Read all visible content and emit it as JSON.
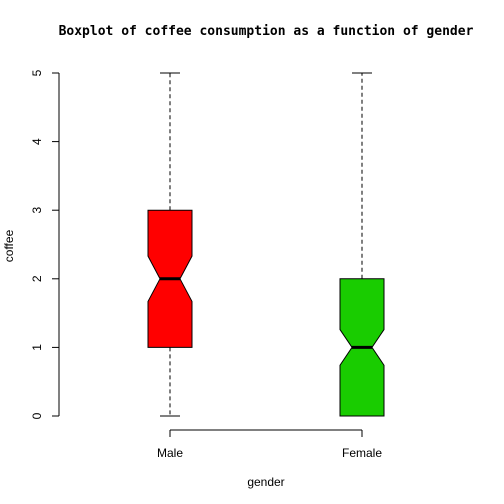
{
  "chart_data": {
    "type": "boxplot",
    "title": "Boxplot of coffee consumption as a function of gender",
    "xlabel": "gender",
    "ylabel": "coffee",
    "ylim": [
      0,
      5
    ],
    "yticks": [
      "0",
      "1",
      "2",
      "3",
      "4",
      "5"
    ],
    "notched": true,
    "grid": false,
    "categories": [
      "Male",
      "Female"
    ],
    "boxes": [
      {
        "category": "Male",
        "min": 0,
        "q1": 1,
        "median": 2,
        "q3": 3,
        "max": 5,
        "notch_low": 1.67,
        "notch_high": 2.33,
        "color": "#ff0000"
      },
      {
        "category": "Female",
        "min": 0,
        "q1": 0,
        "median": 1,
        "q3": 2,
        "max": 5,
        "notch_low": 0.74,
        "notch_high": 1.26,
        "color": "#19cc00"
      }
    ]
  }
}
